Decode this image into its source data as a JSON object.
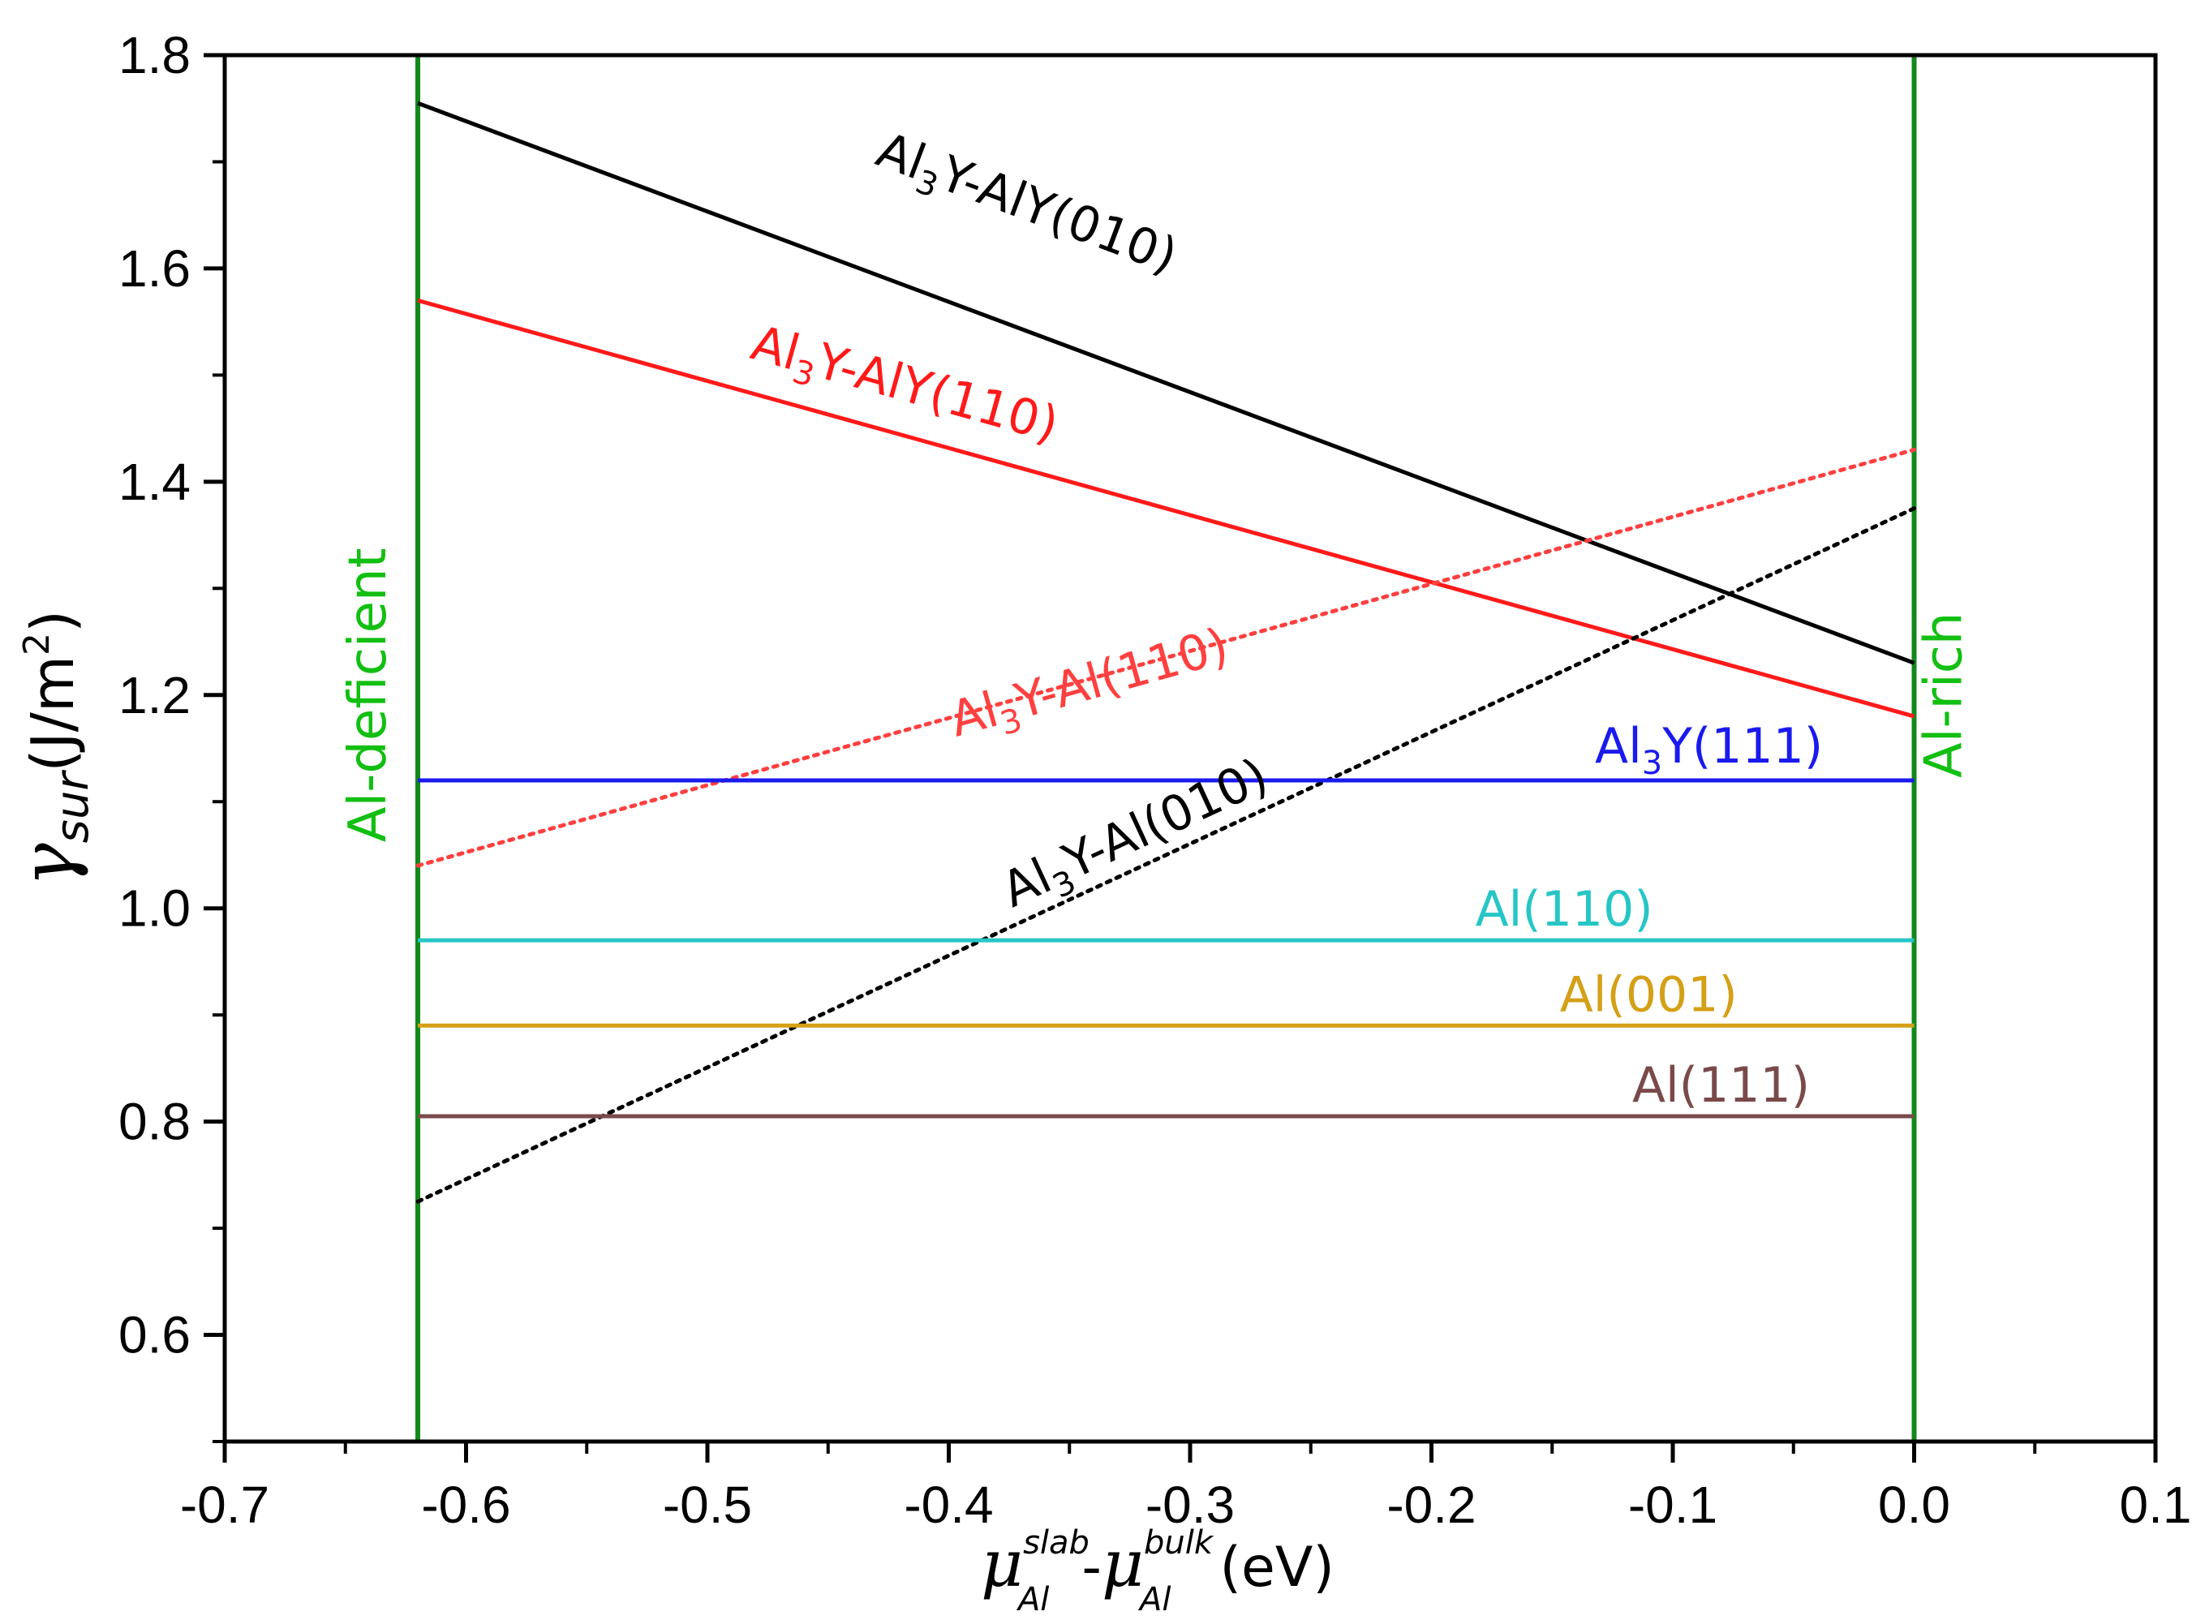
{
  "chart_data": {
    "type": "line",
    "title": "",
    "xlabel": {
      "symbol": "μ",
      "sub1": "Al",
      "sup1": "slab",
      "dash": "-",
      "sub2": "Al",
      "sup2": "bulk",
      "unit": "(eV)"
    },
    "ylabel": {
      "symbol": "γ",
      "sub": "sur",
      "unit_open": "(J/m",
      "unit_sup": "2",
      "unit_close": ")"
    },
    "xlim": [
      -0.7,
      0.1
    ],
    "ylim": [
      0.5,
      1.8
    ],
    "xticks": [
      -0.7,
      -0.6,
      -0.5,
      -0.4,
      -0.3,
      -0.2,
      -0.1,
      0.0,
      0.1
    ],
    "xtick_labels": [
      "-0.7",
      "-0.6",
      "-0.5",
      "-0.4",
      "-0.3",
      "-0.2",
      "-0.1",
      "0.0",
      "0.1"
    ],
    "yticks": [
      0.6,
      0.8,
      1.0,
      1.2,
      1.4,
      1.6,
      1.8
    ],
    "ytick_labels": [
      "0.6",
      "0.8",
      "1.0",
      "1.2",
      "1.4",
      "1.6",
      "1.8"
    ],
    "vlines": [
      {
        "name": "Al-deficient",
        "x": -0.62,
        "color": "#12891a",
        "label": "Al-deficient"
      },
      {
        "name": "Al-rich",
        "x": 0.0,
        "color": "#12891a",
        "label": "Al-rich"
      }
    ],
    "series": [
      {
        "id": "al3y-aly010",
        "name": "Al3Y-AlY(010)",
        "color": "#000000",
        "style": "solid",
        "x": [
          -0.62,
          0.0
        ],
        "y": [
          1.755,
          1.23
        ],
        "label": {
          "main": "Al",
          "sub": "3",
          "rest": "Y-AlY(010)"
        }
      },
      {
        "id": "al3y-aly110",
        "name": "Al3Y-AlY(110)",
        "color": "#ff1a1a",
        "style": "solid",
        "x": [
          -0.62,
          0.0
        ],
        "y": [
          1.57,
          1.18
        ],
        "label": {
          "main": "Al",
          "sub": "3",
          "rest": "Y-AlY(110)"
        }
      },
      {
        "id": "al3y-al110",
        "name": "Al3Y-Al(110)",
        "color": "#ff4040",
        "style": "dotted",
        "x": [
          -0.62,
          0.0
        ],
        "y": [
          1.04,
          1.43
        ],
        "label": {
          "main": "Al",
          "sub": "3",
          "rest": "Y-Al(110)"
        }
      },
      {
        "id": "al3y-al010",
        "name": "Al3Y-Al(010)",
        "color": "#000000",
        "style": "dotted",
        "x": [
          -0.62,
          0.0
        ],
        "y": [
          0.725,
          1.375
        ],
        "label": {
          "main": "Al",
          "sub": "3",
          "rest": "Y-Al(010)"
        }
      },
      {
        "id": "al3y111",
        "name": "Al3Y(111)",
        "color": "#1a1aee",
        "style": "solid",
        "x": [
          -0.62,
          0.0
        ],
        "y": [
          1.12,
          1.12
        ],
        "label": {
          "main": "Al",
          "sub": "3",
          "rest": "Y(111)"
        }
      },
      {
        "id": "al110",
        "name": "Al(110)",
        "color": "#26c6c6",
        "style": "solid",
        "x": [
          -0.62,
          0.0
        ],
        "y": [
          0.97,
          0.97
        ],
        "label": {
          "main": "Al(110)",
          "sub": "",
          "rest": ""
        }
      },
      {
        "id": "al001",
        "name": "Al(001)",
        "color": "#d4a017",
        "style": "solid",
        "x": [
          -0.62,
          0.0
        ],
        "y": [
          0.89,
          0.89
        ],
        "label": {
          "main": "Al(001)",
          "sub": "",
          "rest": ""
        }
      },
      {
        "id": "al111",
        "name": "Al(111)",
        "color": "#7a4a4a",
        "style": "solid",
        "x": [
          -0.62,
          0.0
        ],
        "y": [
          0.805,
          0.805
        ],
        "label": {
          "main": "Al(111)",
          "sub": "",
          "rest": ""
        }
      }
    ]
  }
}
